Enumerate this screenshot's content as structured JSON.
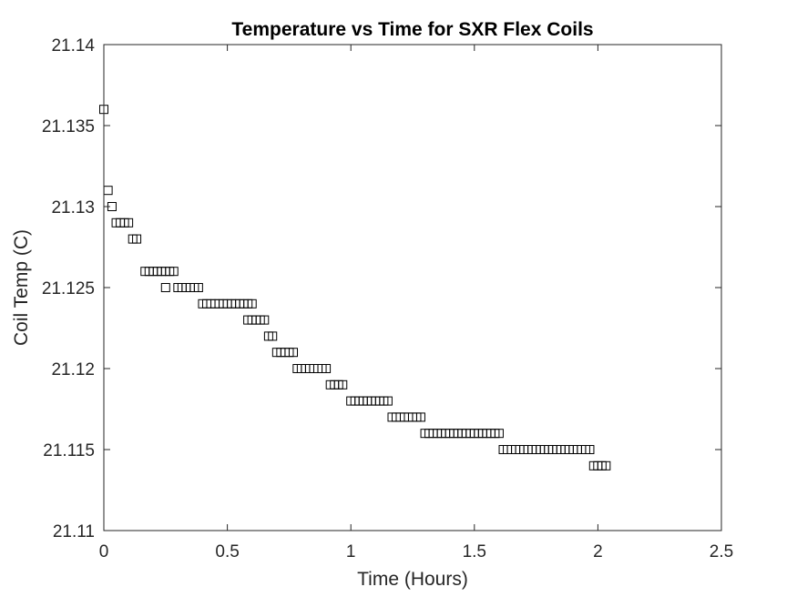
{
  "chart_data": {
    "type": "scatter",
    "title": "Temperature vs Time for SXR Flex Coils",
    "xlabel": "Time (Hours)",
    "ylabel": "Coil Temp (C)",
    "xlim": [
      0,
      2.5
    ],
    "ylim": [
      21.11,
      21.14
    ],
    "xticks": [
      0,
      0.5,
      1,
      1.5,
      2,
      2.5
    ],
    "xtick_labels": [
      "0",
      "0.5",
      "1",
      "1.5",
      "2",
      "2.5"
    ],
    "yticks": [
      21.11,
      21.115,
      21.12,
      21.125,
      21.13,
      21.135,
      21.14
    ],
    "ytick_labels": [
      "21.11",
      "21.115",
      "21.12",
      "21.125",
      "21.13",
      "21.135",
      "21.14"
    ],
    "grid": false,
    "marker": "square",
    "marker_color": "#000000",
    "segments": [
      {
        "y": 21.136,
        "x_start": 0.0,
        "x_end": 0.0,
        "count": 1
      },
      {
        "y": 21.131,
        "x_start": 0.017,
        "x_end": 0.017,
        "count": 1
      },
      {
        "y": 21.13,
        "x_start": 0.033,
        "x_end": 0.033,
        "count": 1
      },
      {
        "y": 21.129,
        "x_start": 0.05,
        "x_end": 0.1,
        "count": 4
      },
      {
        "y": 21.128,
        "x_start": 0.117,
        "x_end": 0.133,
        "count": 2
      },
      {
        "y": 21.126,
        "x_start": 0.167,
        "x_end": 0.283,
        "count": 8
      },
      {
        "y": 21.125,
        "x_start": 0.25,
        "x_end": 0.25,
        "count": 1
      },
      {
        "y": 21.125,
        "x_start": 0.3,
        "x_end": 0.383,
        "count": 6
      },
      {
        "y": 21.124,
        "x_start": 0.4,
        "x_end": 0.6,
        "count": 13
      },
      {
        "y": 21.123,
        "x_start": 0.583,
        "x_end": 0.65,
        "count": 5
      },
      {
        "y": 21.122,
        "x_start": 0.667,
        "x_end": 0.683,
        "count": 2
      },
      {
        "y": 21.121,
        "x_start": 0.7,
        "x_end": 0.767,
        "count": 5
      },
      {
        "y": 21.12,
        "x_start": 0.783,
        "x_end": 0.9,
        "count": 8
      },
      {
        "y": 21.119,
        "x_start": 0.917,
        "x_end": 0.967,
        "count": 4
      },
      {
        "y": 21.118,
        "x_start": 1.0,
        "x_end": 1.15,
        "count": 10
      },
      {
        "y": 21.117,
        "x_start": 1.167,
        "x_end": 1.283,
        "count": 8
      },
      {
        "y": 21.116,
        "x_start": 1.3,
        "x_end": 1.6,
        "count": 19
      },
      {
        "y": 21.115,
        "x_start": 1.617,
        "x_end": 1.967,
        "count": 22
      },
      {
        "y": 21.114,
        "x_start": 1.983,
        "x_end": 2.033,
        "count": 4
      }
    ]
  }
}
